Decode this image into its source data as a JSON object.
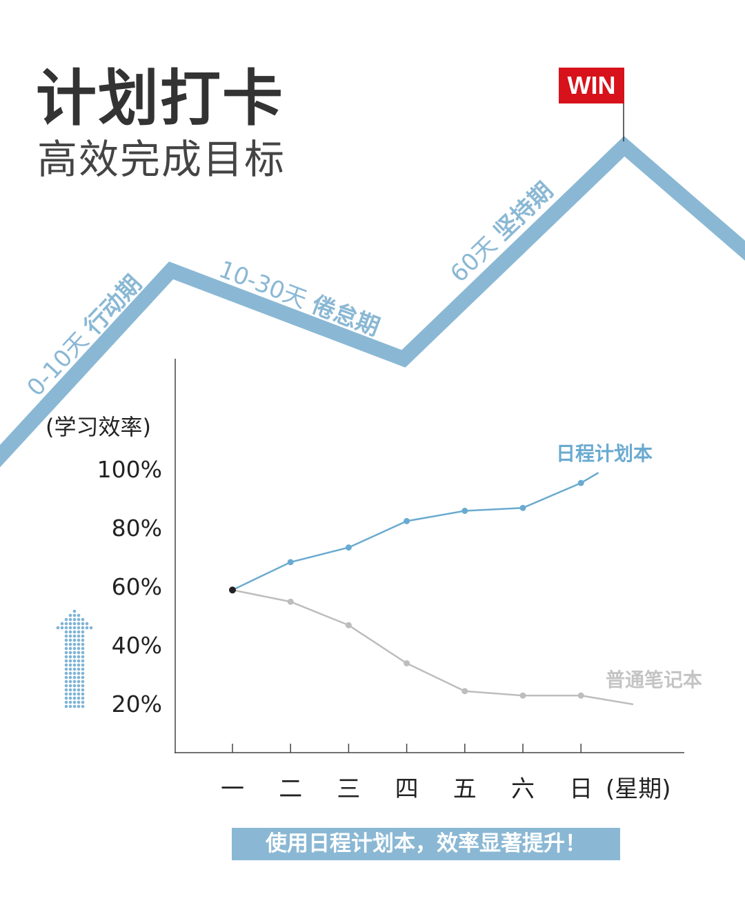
{
  "header": {
    "title": "计划打卡",
    "subtitle": "高效完成目标"
  },
  "journey": {
    "flag": "WIN",
    "stages": [
      {
        "days": "0-10天",
        "name": "行动期"
      },
      {
        "days": "10-30天",
        "name": "倦怠期"
      },
      {
        "days": "60天",
        "name": "坚持期"
      }
    ]
  },
  "colors": {
    "accent": "#8ab8d4",
    "blue_line": "#6aaad0",
    "gray_line": "#bdbdbd",
    "flag": "#d7121b"
  },
  "chart_data": {
    "type": "line",
    "ylabel": "(学习效率)",
    "xlabel": "(星期)",
    "categories": [
      "一",
      "二",
      "三",
      "四",
      "五",
      "六",
      "日"
    ],
    "yticks": [
      "20%",
      "40%",
      "60%",
      "80%",
      "100%"
    ],
    "ytick_values": [
      20,
      40,
      60,
      80,
      100
    ],
    "series": [
      {
        "name": "日程计划本",
        "values": [
          59,
          68.5,
          73.5,
          82.5,
          86,
          87,
          95.5
        ],
        "trend_end": {
          "x": 6.3,
          "y": 99
        }
      },
      {
        "name": "普通笔记本",
        "values": [
          59,
          55,
          47,
          34,
          24.5,
          23,
          23
        ],
        "trend_end": {
          "x": 6.9,
          "y": 20
        }
      }
    ]
  },
  "banner": "使用日程计划本，效率显著提升！"
}
